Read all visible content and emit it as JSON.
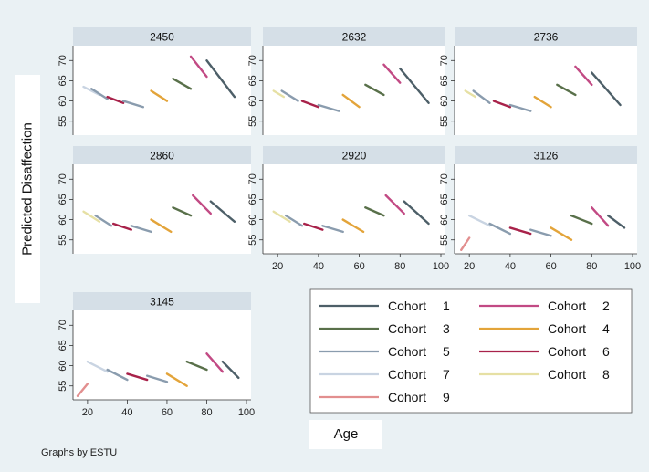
{
  "chart_data": {
    "type": "line",
    "y_axis_title": "Predicted Disaffection",
    "x_axis_title": "Age",
    "note": "Graphs by ESTU",
    "x_range": [
      15,
      100
    ],
    "y_range": [
      52,
      73
    ],
    "x_ticks": [
      20,
      40,
      60,
      80,
      100
    ],
    "y_ticks": [
      55,
      60,
      65,
      70
    ],
    "cohorts": [
      {
        "label": "Cohort",
        "number": "1",
        "color": "#4d5f68"
      },
      {
        "label": "Cohort",
        "number": "2",
        "color": "#c24a84"
      },
      {
        "label": "Cohort",
        "number": "3",
        "color": "#59704a"
      },
      {
        "label": "Cohort",
        "number": "4",
        "color": "#e3a43a"
      },
      {
        "label": "Cohort",
        "number": "5",
        "color": "#8a9cae"
      },
      {
        "label": "Cohort",
        "number": "6",
        "color": "#a8224a"
      },
      {
        "label": "Cohort",
        "number": "7",
        "color": "#c9d4e2"
      },
      {
        "label": "Cohort",
        "number": "8",
        "color": "#e6e0a4"
      },
      {
        "label": "Cohort",
        "number": "9",
        "color": "#e28f8f"
      }
    ],
    "panels": [
      {
        "title": "2450",
        "segments": [
          {
            "cohort": 7,
            "x": [
              18,
              26
            ],
            "y": [
              63.5,
              61.5
            ]
          },
          {
            "cohort": 5,
            "x": [
              22,
              30
            ],
            "y": [
              63,
              60.5
            ]
          },
          {
            "cohort": 6,
            "x": [
              30,
              38
            ],
            "y": [
              61,
              59.5
            ]
          },
          {
            "cohort": 5,
            "x": [
              38,
              48
            ],
            "y": [
              60,
              58.5
            ]
          },
          {
            "cohort": 4,
            "x": [
              52,
              60
            ],
            "y": [
              62.5,
              60
            ]
          },
          {
            "cohort": 3,
            "x": [
              63,
              72
            ],
            "y": [
              65.5,
              63
            ]
          },
          {
            "cohort": 2,
            "x": [
              72,
              80
            ],
            "y": [
              71,
              66
            ]
          },
          {
            "cohort": 1,
            "x": [
              80,
              94
            ],
            "y": [
              70,
              61
            ]
          }
        ]
      },
      {
        "title": "2632",
        "segments": [
          {
            "cohort": 8,
            "x": [
              18,
              23
            ],
            "y": [
              62.5,
              61
            ]
          },
          {
            "cohort": 5,
            "x": [
              22,
              30
            ],
            "y": [
              62.5,
              60
            ]
          },
          {
            "cohort": 6,
            "x": [
              32,
              40
            ],
            "y": [
              60,
              58.5
            ]
          },
          {
            "cohort": 5,
            "x": [
              40,
              50
            ],
            "y": [
              59,
              57.5
            ]
          },
          {
            "cohort": 4,
            "x": [
              52,
              60
            ],
            "y": [
              61.5,
              58.5
            ]
          },
          {
            "cohort": 3,
            "x": [
              63,
              72
            ],
            "y": [
              64,
              61.5
            ]
          },
          {
            "cohort": 2,
            "x": [
              72,
              80
            ],
            "y": [
              69,
              64.5
            ]
          },
          {
            "cohort": 1,
            "x": [
              80,
              94
            ],
            "y": [
              68,
              59.5
            ]
          }
        ]
      },
      {
        "title": "2736",
        "segments": [
          {
            "cohort": 8,
            "x": [
              18,
              23
            ],
            "y": [
              62.5,
              61
            ]
          },
          {
            "cohort": 5,
            "x": [
              22,
              30
            ],
            "y": [
              62.5,
              59.5
            ]
          },
          {
            "cohort": 6,
            "x": [
              32,
              40
            ],
            "y": [
              60,
              58.5
            ]
          },
          {
            "cohort": 5,
            "x": [
              40,
              50
            ],
            "y": [
              59,
              57.5
            ]
          },
          {
            "cohort": 4,
            "x": [
              52,
              60
            ],
            "y": [
              61,
              58.5
            ]
          },
          {
            "cohort": 3,
            "x": [
              63,
              72
            ],
            "y": [
              64,
              61.5
            ]
          },
          {
            "cohort": 2,
            "x": [
              72,
              80
            ],
            "y": [
              68.5,
              64
            ]
          },
          {
            "cohort": 1,
            "x": [
              80,
              94
            ],
            "y": [
              67,
              59
            ]
          }
        ]
      },
      {
        "title": "2860",
        "segments": [
          {
            "cohort": 8,
            "x": [
              18,
              26
            ],
            "y": [
              62,
              59.5
            ]
          },
          {
            "cohort": 5,
            "x": [
              24,
              32
            ],
            "y": [
              61,
              58.5
            ]
          },
          {
            "cohort": 6,
            "x": [
              33,
              42
            ],
            "y": [
              59,
              57.5
            ]
          },
          {
            "cohort": 5,
            "x": [
              42,
              52
            ],
            "y": [
              58.5,
              57
            ]
          },
          {
            "cohort": 4,
            "x": [
              52,
              62
            ],
            "y": [
              60,
              57
            ]
          },
          {
            "cohort": 3,
            "x": [
              63,
              72
            ],
            "y": [
              63,
              61
            ]
          },
          {
            "cohort": 2,
            "x": [
              73,
              82
            ],
            "y": [
              66,
              61.5
            ]
          },
          {
            "cohort": 1,
            "x": [
              82,
              94
            ],
            "y": [
              64.5,
              59.5
            ]
          }
        ]
      },
      {
        "title": "2920",
        "segments": [
          {
            "cohort": 8,
            "x": [
              18,
              26
            ],
            "y": [
              62,
              59.5
            ]
          },
          {
            "cohort": 5,
            "x": [
              24,
              32
            ],
            "y": [
              61,
              58.5
            ]
          },
          {
            "cohort": 6,
            "x": [
              33,
              42
            ],
            "y": [
              59,
              57.5
            ]
          },
          {
            "cohort": 5,
            "x": [
              42,
              52
            ],
            "y": [
              58.5,
              57
            ]
          },
          {
            "cohort": 4,
            "x": [
              52,
              62
            ],
            "y": [
              60,
              57
            ]
          },
          {
            "cohort": 3,
            "x": [
              63,
              72
            ],
            "y": [
              63,
              61
            ]
          },
          {
            "cohort": 2,
            "x": [
              73,
              82
            ],
            "y": [
              66,
              61.5
            ]
          },
          {
            "cohort": 1,
            "x": [
              82,
              94
            ],
            "y": [
              64.5,
              59
            ]
          }
        ]
      },
      {
        "title": "3126",
        "segments": [
          {
            "cohort": 9,
            "x": [
              16,
              20
            ],
            "y": [
              52.5,
              55.5
            ]
          },
          {
            "cohort": 7,
            "x": [
              20,
              30
            ],
            "y": [
              61,
              58.5
            ]
          },
          {
            "cohort": 5,
            "x": [
              30,
              40
            ],
            "y": [
              59,
              56.5
            ]
          },
          {
            "cohort": 6,
            "x": [
              40,
              50
            ],
            "y": [
              58,
              56.5
            ]
          },
          {
            "cohort": 5,
            "x": [
              50,
              60
            ],
            "y": [
              57.5,
              56
            ]
          },
          {
            "cohort": 4,
            "x": [
              60,
              70
            ],
            "y": [
              58,
              55
            ]
          },
          {
            "cohort": 3,
            "x": [
              70,
              80
            ],
            "y": [
              61,
              59
            ]
          },
          {
            "cohort": 2,
            "x": [
              80,
              88
            ],
            "y": [
              63,
              58.5
            ]
          },
          {
            "cohort": 1,
            "x": [
              88,
              96
            ],
            "y": [
              61,
              58
            ]
          }
        ]
      },
      {
        "title": "3145",
        "segments": [
          {
            "cohort": 9,
            "x": [
              15,
              20
            ],
            "y": [
              52.5,
              55.5
            ]
          },
          {
            "cohort": 7,
            "x": [
              20,
              30
            ],
            "y": [
              61,
              58.5
            ]
          },
          {
            "cohort": 5,
            "x": [
              30,
              40
            ],
            "y": [
              59,
              56.5
            ]
          },
          {
            "cohort": 6,
            "x": [
              40,
              50
            ],
            "y": [
              58,
              56.5
            ]
          },
          {
            "cohort": 5,
            "x": [
              50,
              60
            ],
            "y": [
              57.5,
              56
            ]
          },
          {
            "cohort": 4,
            "x": [
              60,
              70
            ],
            "y": [
              58,
              55
            ]
          },
          {
            "cohort": 3,
            "x": [
              70,
              80
            ],
            "y": [
              61,
              59
            ]
          },
          {
            "cohort": 2,
            "x": [
              80,
              88
            ],
            "y": [
              63,
              58.5
            ]
          },
          {
            "cohort": 1,
            "x": [
              88,
              96
            ],
            "y": [
              61,
              57
            ]
          }
        ]
      }
    ]
  }
}
